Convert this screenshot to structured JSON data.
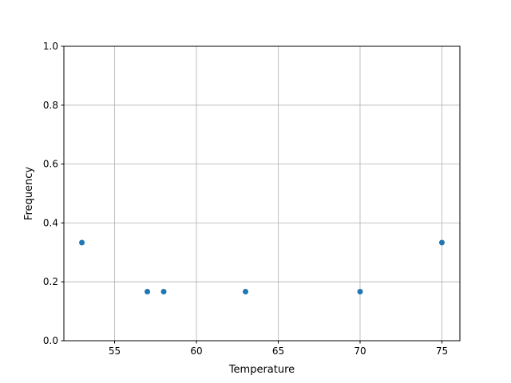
{
  "chart_data": {
    "type": "scatter",
    "title": "",
    "xlabel": "Temperature",
    "ylabel": "Frequency",
    "xlim": [
      51.9,
      76.1
    ],
    "ylim": [
      0,
      1
    ],
    "xticks": [
      55,
      60,
      65,
      70,
      75
    ],
    "yticks": [
      0.0,
      0.2,
      0.4,
      0.6,
      0.8,
      1.0
    ],
    "xtick_labels": [
      "55",
      "60",
      "65",
      "70",
      "75"
    ],
    "ytick_labels": [
      "0.0",
      "0.2",
      "0.4",
      "0.6",
      "0.8",
      "1.0"
    ],
    "grid": true,
    "color": "#1f77b4",
    "points": [
      {
        "x": 53,
        "y": 0.3333
      },
      {
        "x": 57,
        "y": 0.1667
      },
      {
        "x": 58,
        "y": 0.1667
      },
      {
        "x": 63,
        "y": 0.1667
      },
      {
        "x": 70,
        "y": 0.1667
      },
      {
        "x": 75,
        "y": 0.3333
      }
    ]
  }
}
